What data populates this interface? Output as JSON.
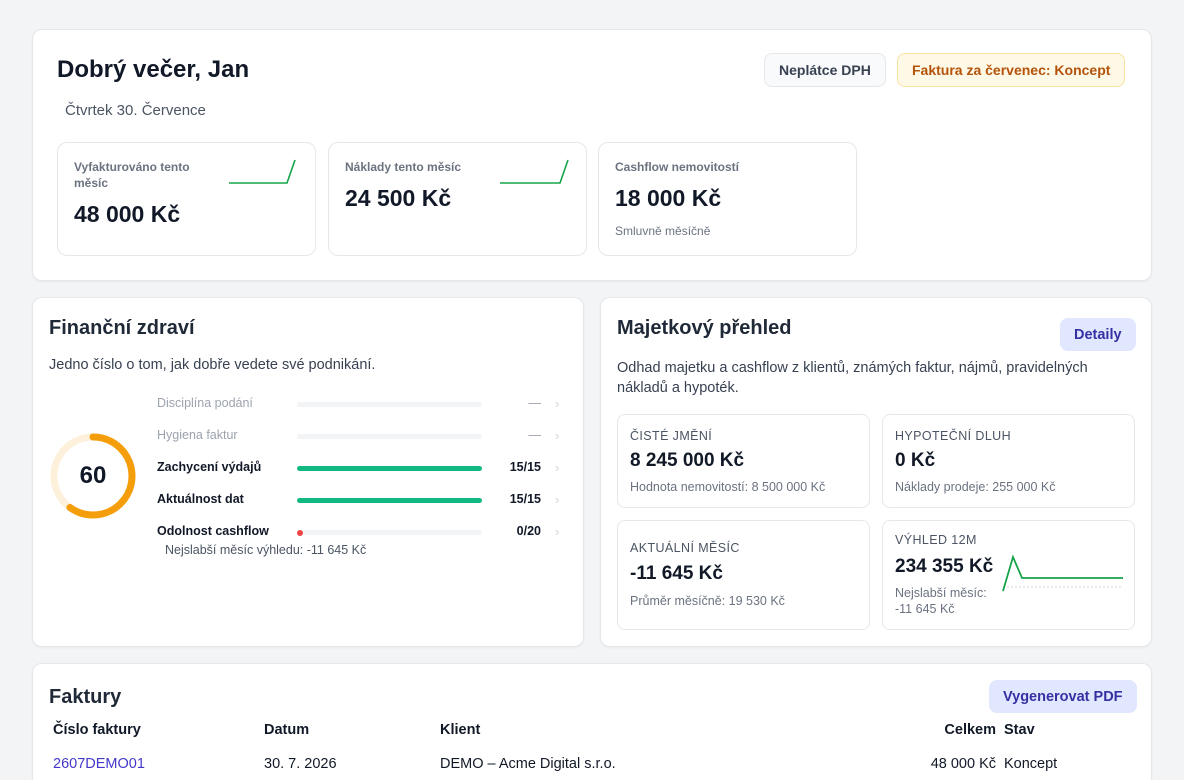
{
  "header": {
    "greeting": "Dobrý večer, Jan",
    "date": "Čtvrtek 30. Července",
    "vat_badge": "Neplátce DPH",
    "invoice_badge": "Faktura za červenec: Koncept"
  },
  "stats": [
    {
      "label": "Vyfakturováno tento měsíc",
      "value": "48 000 Kč",
      "sparkline": true
    },
    {
      "label": "Náklady tento měsíc",
      "value": "24 500 Kč",
      "sparkline": true
    },
    {
      "label": "Cashflow nemovitostí",
      "value": "18 000 Kč",
      "sub": "Smluvně měsíčně"
    }
  ],
  "health": {
    "title": "Finanční zdraví",
    "description": "Jedno číslo o tom, jak dobře vedete své podnikání.",
    "score": "60",
    "score_fraction": 0.6,
    "metrics": [
      {
        "label": "Disciplína podání",
        "score": "—",
        "fraction": 0,
        "active": false
      },
      {
        "label": "Hygiena faktur",
        "score": "—",
        "fraction": 0,
        "active": false
      },
      {
        "label": "Zachycení výdajů",
        "score": "15/15",
        "fraction": 1,
        "active": true
      },
      {
        "label": "Aktuálnost dat",
        "score": "15/15",
        "fraction": 1,
        "active": true
      },
      {
        "label": "Odolnost cashflow",
        "score": "0/20",
        "fraction": 0,
        "active": true
      }
    ],
    "weakest_note": "Nejslabší měsíc výhledu: -11 645 Kč"
  },
  "assets": {
    "title": "Majetkový přehled",
    "details_button": "Detaily",
    "description": "Odhad majetku a cashflow z klientů, známých faktur, nájmů, pravidelných nákladů a hypoték.",
    "net_worth": {
      "label": "ČISTÉ JMĚNÍ",
      "value": "8 245 000 Kč",
      "sub": "Hodnota nemovitostí: 8 500 000 Kč"
    },
    "mortgage": {
      "label": "HYPOTEČNÍ DLUH",
      "value": "0 Kč",
      "sub": "Náklady prodeje: 255 000 Kč"
    },
    "current_month": {
      "label": "AKTUÁLNÍ MĚSÍC",
      "value": "-11 645 Kč",
      "sub": "Průměr měsíčně: 19 530 Kč"
    },
    "outlook": {
      "label": "VÝHLED 12M",
      "value": "234 355 Kč",
      "sub_line1": "Nejslabší měsíc:",
      "sub_line2": "-11 645 Kč"
    }
  },
  "invoices": {
    "title": "Faktury",
    "pdf_button": "Vygenerovat PDF",
    "columns": [
      "Číslo faktury",
      "Datum",
      "Klient",
      "Celkem",
      "Stav"
    ],
    "rows": [
      {
        "number": "2607DEMO01",
        "date": "30. 7. 2026",
        "client": "DEMO – Acme Digital s.r.o.",
        "total": "48 000 Kč",
        "status": "Koncept"
      }
    ]
  },
  "colors": {
    "accent_green": "#10b981",
    "gauge_orange": "#f59e0b",
    "alert_red": "#ef4444",
    "link_indigo": "#4338ca"
  }
}
